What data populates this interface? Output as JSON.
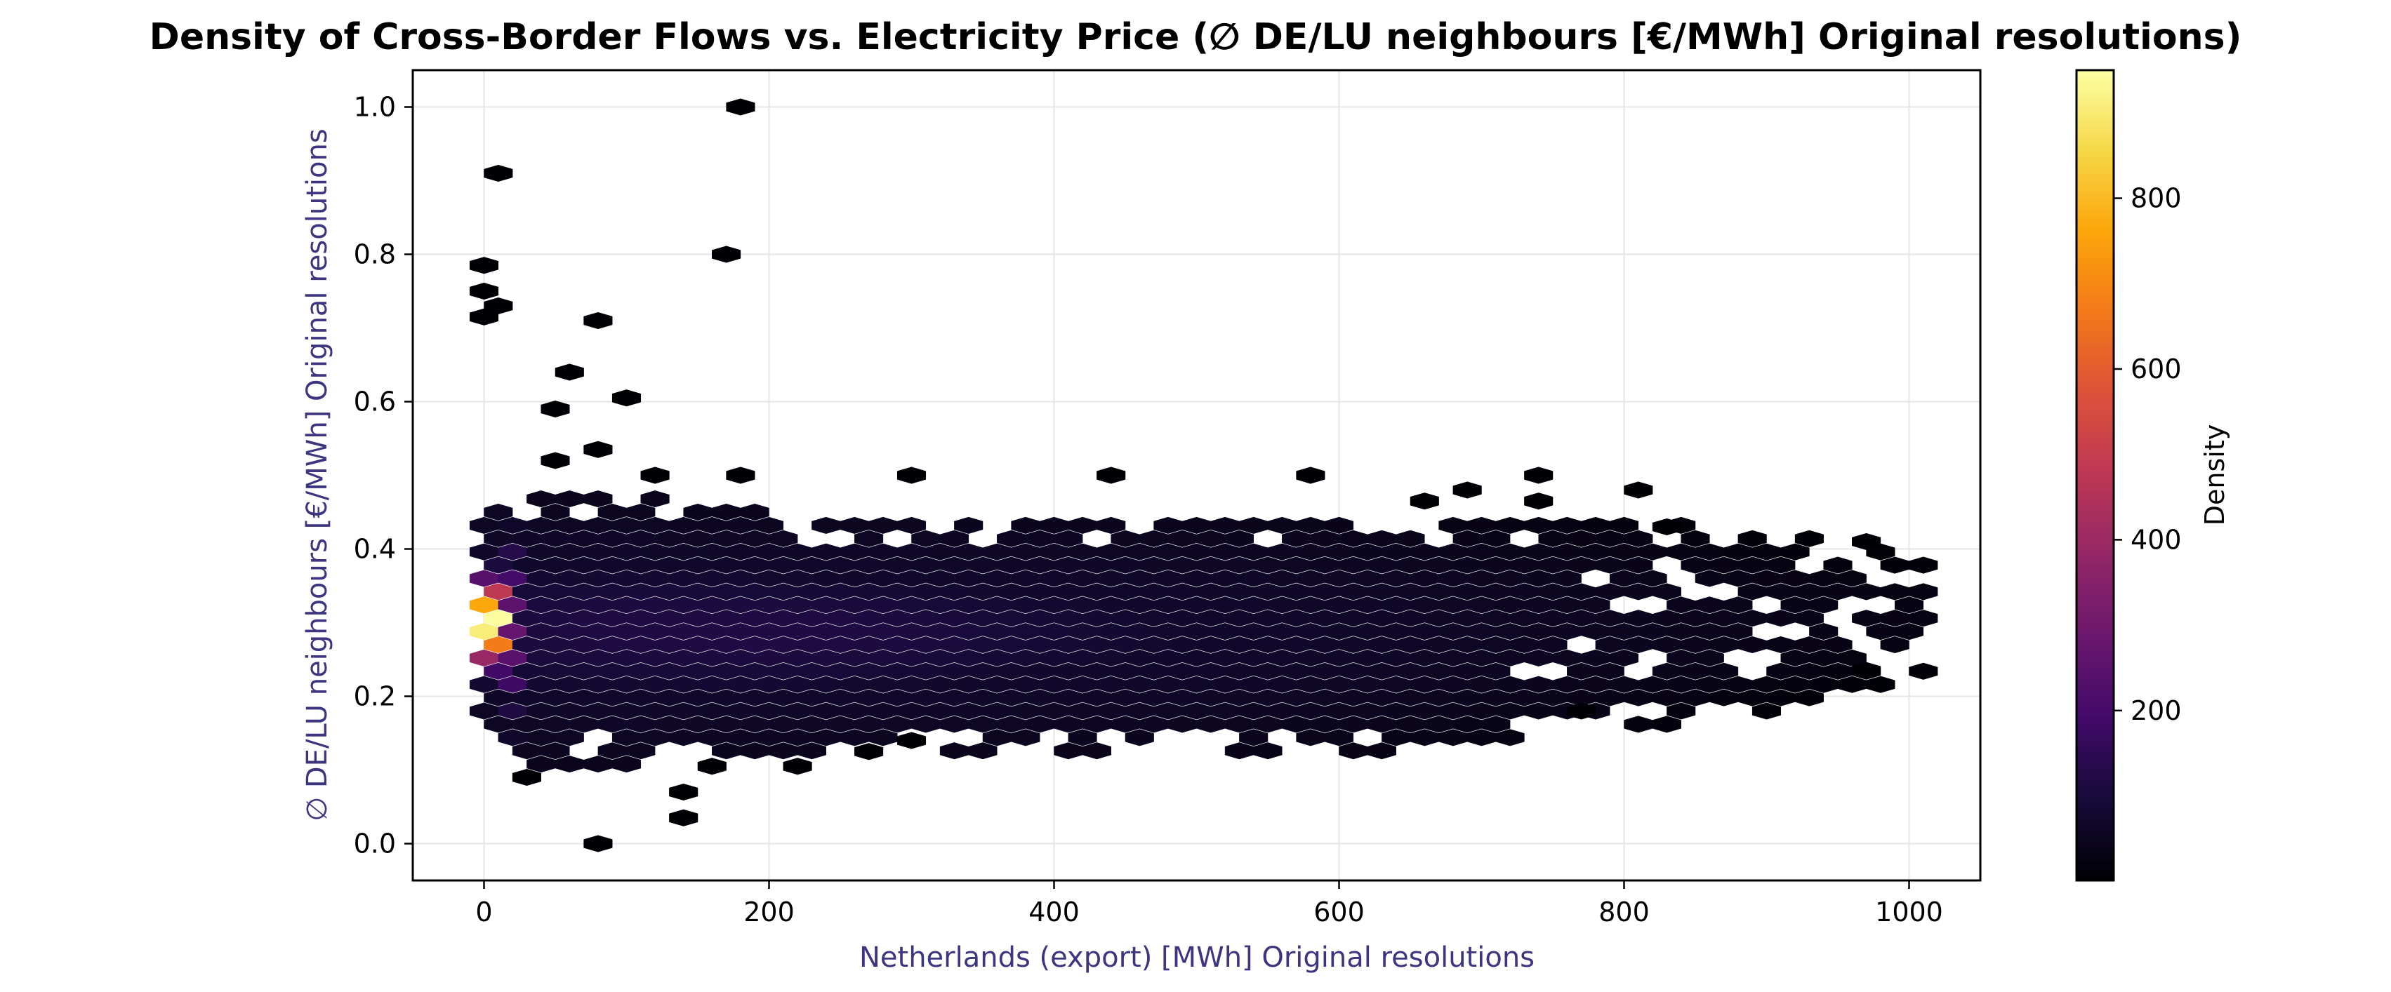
{
  "chart_data": {
    "type": "hexbin",
    "title": "Density of Cross-Border Flows vs. Electricity Price (∅ DE/LU neighbours [€/MWh] Original resolutions)",
    "xlabel": "Netherlands (export) [MWh] Original resolutions",
    "ylabel": "∅ DE/LU neighbours [€/MWh] Original resolutions",
    "xlim": [
      -50,
      1050
    ],
    "ylim": [
      -0.05,
      1.05
    ],
    "x_ticks": [
      0,
      200,
      400,
      600,
      800,
      1000
    ],
    "y_ticks": [
      0.0,
      0.2,
      0.4,
      0.6,
      0.8,
      1.0
    ],
    "y_tick_labels": [
      "0.0",
      "0.2",
      "0.4",
      "0.6",
      "0.8",
      "1.0"
    ],
    "grid": true,
    "colormap": "inferno",
    "colorbar": {
      "label": "Density",
      "range": [
        1,
        950
      ],
      "ticks": [
        200,
        400,
        600,
        800
      ]
    },
    "label_color": "#3d3580",
    "density_profile": {
      "columns": [
        {
          "x": 0,
          "center": 0.3,
          "spread": 0.06,
          "peak": 930
        },
        {
          "x": 25,
          "center": 0.29,
          "spread": 0.09,
          "peak": 110
        },
        {
          "x": 100,
          "center": 0.29,
          "spread": 0.09,
          "peak": 115
        },
        {
          "x": 200,
          "center": 0.285,
          "spread": 0.08,
          "peak": 120
        },
        {
          "x": 300,
          "center": 0.285,
          "spread": 0.08,
          "peak": 110
        },
        {
          "x": 400,
          "center": 0.285,
          "spread": 0.08,
          "peak": 90
        },
        {
          "x": 500,
          "center": 0.285,
          "spread": 0.08,
          "peak": 75
        },
        {
          "x": 600,
          "center": 0.285,
          "spread": 0.08,
          "peak": 55
        },
        {
          "x": 700,
          "center": 0.29,
          "spread": 0.075,
          "peak": 35
        },
        {
          "x": 800,
          "center": 0.295,
          "spread": 0.07,
          "peak": 20
        },
        {
          "x": 900,
          "center": 0.3,
          "spread": 0.06,
          "peak": 10
        },
        {
          "x": 1000,
          "center": 0.31,
          "spread": 0.05,
          "peak": 5
        }
      ],
      "outliers": [
        [
          180,
          1.0
        ],
        [
          10,
          0.91
        ],
        [
          170,
          0.8
        ],
        [
          80,
          0.71
        ],
        [
          0,
          0.785
        ],
        [
          0,
          0.75
        ],
        [
          0,
          0.715
        ],
        [
          10,
          0.73
        ],
        [
          60,
          0.64
        ],
        [
          100,
          0.605
        ],
        [
          50,
          0.59
        ],
        [
          80,
          0.535
        ],
        [
          50,
          0.52
        ],
        [
          80,
          0.0
        ],
        [
          140,
          0.035
        ],
        [
          140,
          0.07
        ],
        [
          30,
          0.09
        ],
        [
          160,
          0.105
        ],
        [
          220,
          0.105
        ],
        [
          270,
          0.125
        ],
        [
          300,
          0.14
        ],
        [
          740,
          0.5
        ],
        [
          740,
          0.465
        ],
        [
          810,
          0.48
        ],
        [
          580,
          0.5
        ],
        [
          440,
          0.5
        ],
        [
          300,
          0.5
        ],
        [
          180,
          0.5
        ],
        [
          120,
          0.5
        ],
        [
          660,
          0.465
        ],
        [
          690,
          0.48
        ],
        [
          770,
          0.18
        ],
        [
          970,
          0.41
        ],
        [
          970,
          0.235
        ],
        [
          830,
          0.43
        ]
      ]
    }
  }
}
